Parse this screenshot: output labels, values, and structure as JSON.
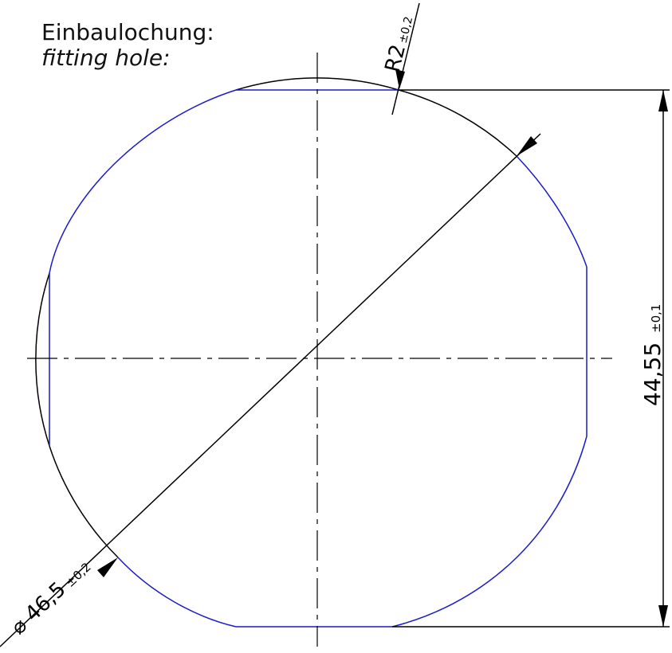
{
  "labels": {
    "title_de": "Einbaulochung:",
    "title_en": "fitting hole:"
  },
  "dimensions": {
    "radius": {
      "symbol": "R2",
      "tolerance": "±0,2"
    },
    "height": {
      "value": "44,55",
      "tolerance": "±0,1"
    },
    "diameter": {
      "symbol": "⌀",
      "value": "46,5",
      "tolerance": "±0,2"
    }
  },
  "colors": {
    "outline": "#1a1acc",
    "dimension": "#000000",
    "centerline": "#000000",
    "background": "#ffffff"
  }
}
